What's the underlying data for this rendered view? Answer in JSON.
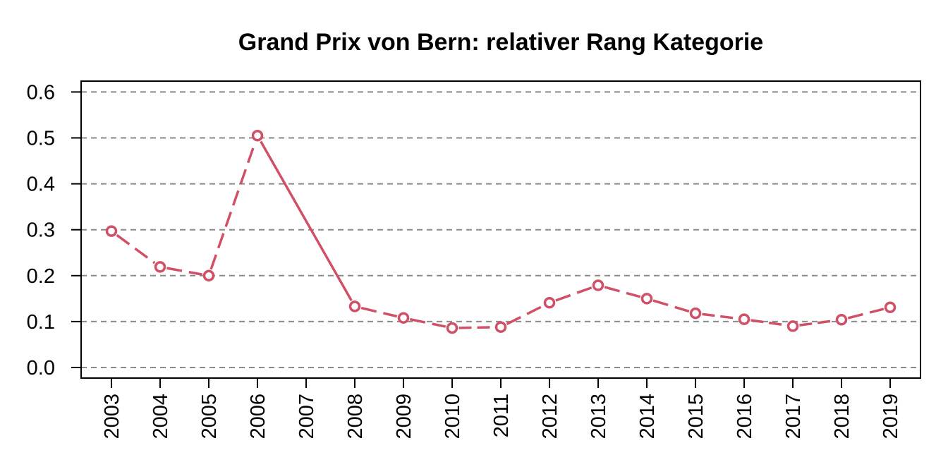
{
  "chart_data": {
    "type": "line",
    "title": "Grand Prix von Bern: relativer Rang Kategorie",
    "xlabel": "",
    "ylabel": "",
    "categories": [
      "2003",
      "2004",
      "2005",
      "2006",
      "2007",
      "2008",
      "2009",
      "2010",
      "2011",
      "2012",
      "2013",
      "2014",
      "2015",
      "2016",
      "2017",
      "2018",
      "2019"
    ],
    "series": [
      {
        "values": [
          0.297,
          0.219,
          0.2,
          0.505,
          null,
          0.133,
          0.108,
          0.086,
          0.088,
          0.141,
          0.179,
          0.15,
          0.118,
          0.105,
          0.09,
          0.104,
          0.131
        ],
        "color": "#d05068"
      }
    ],
    "yticks": [
      "0.0",
      "0.1",
      "0.2",
      "0.3",
      "0.4",
      "0.5",
      "0.6"
    ],
    "ylim": [
      0,
      0.6
    ],
    "grid": "horizontal dashed",
    "legend": "none",
    "notes": "2007 has no marker; solid line connects 2006 to 2008, other segments dashed"
  }
}
